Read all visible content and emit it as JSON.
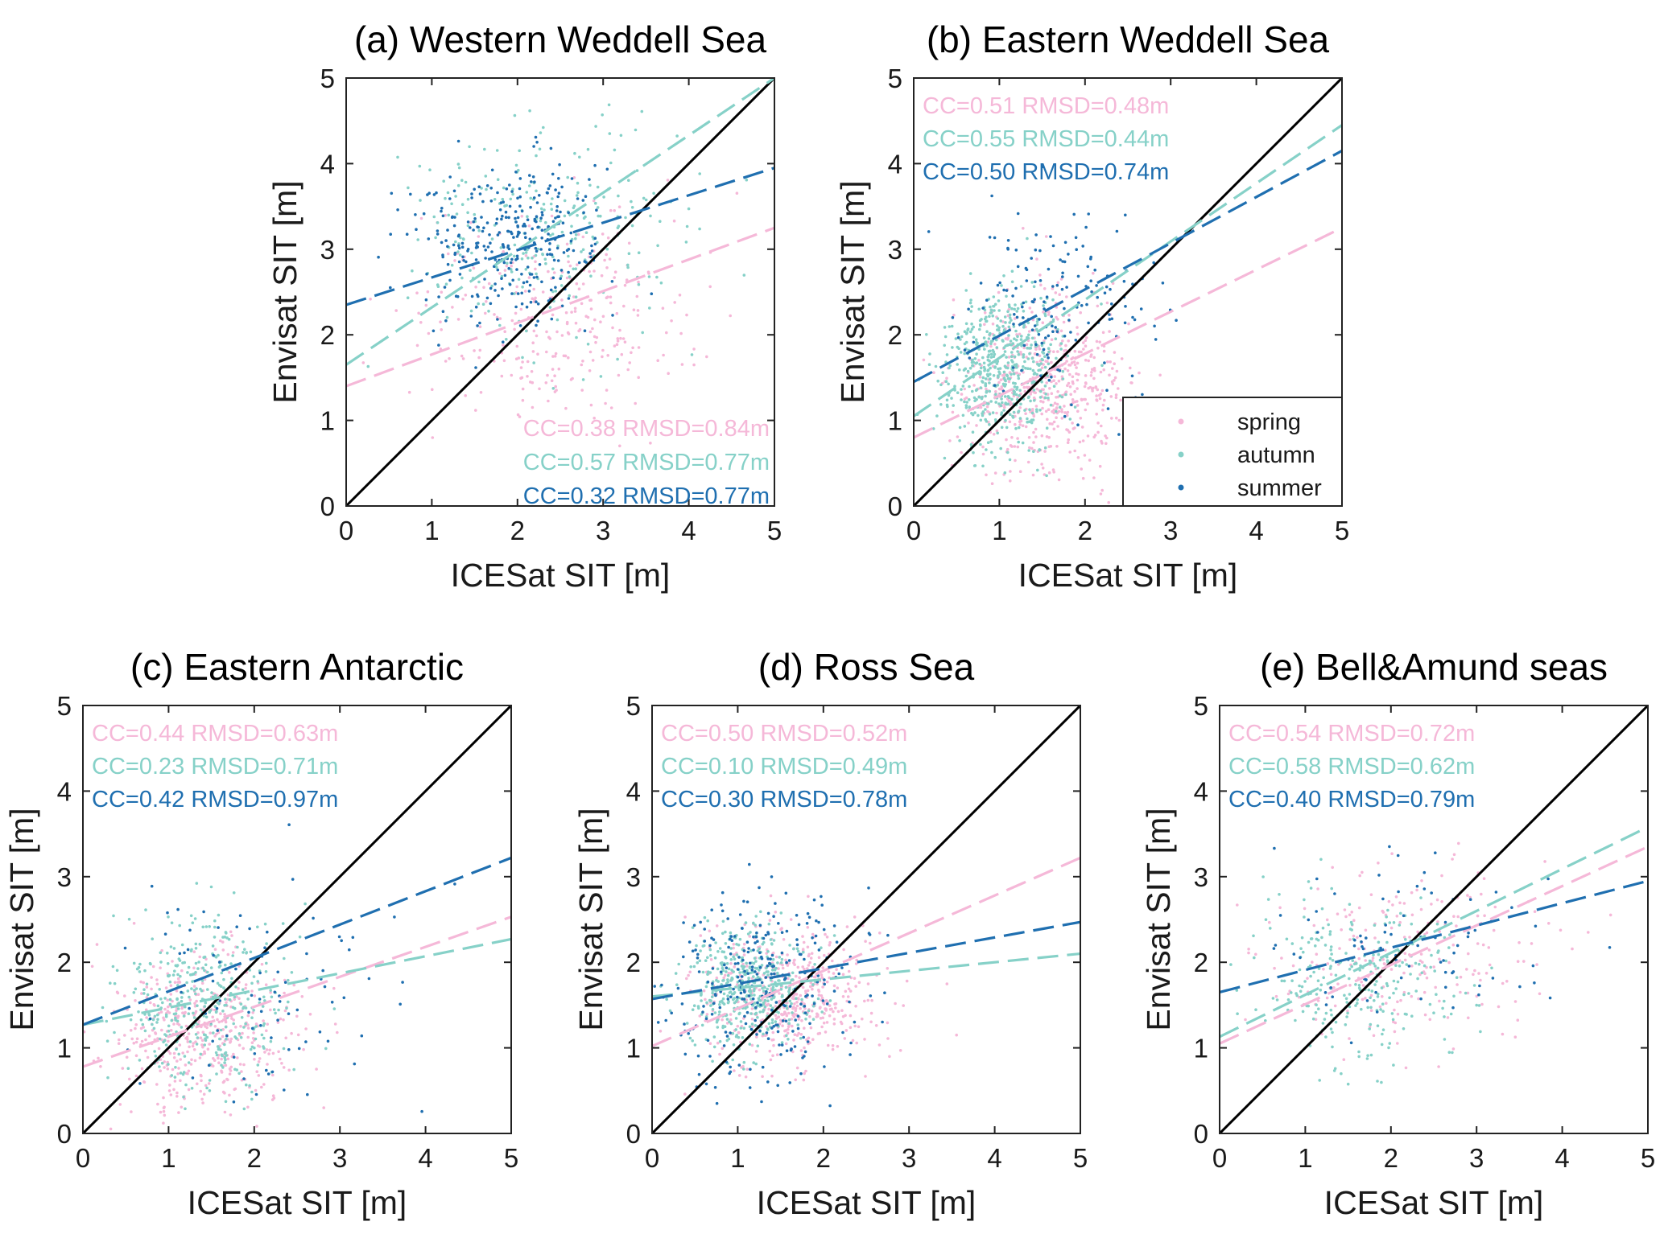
{
  "colors": {
    "spring": "#f5b8d8",
    "autumn": "#86d1c8",
    "summer": "#1f6fb0",
    "onetoone": "#000000"
  },
  "chart_data": [
    {
      "id": "a",
      "type": "scatter",
      "title": "(a) Western Weddell Sea",
      "xlabel": "ICESat SIT [m]",
      "ylabel": "Envisat SIT [m]",
      "xlim": [
        0,
        5
      ],
      "ylim": [
        0,
        5
      ],
      "xticks": [
        "0",
        "1",
        "2",
        "3",
        "4",
        "5"
      ],
      "yticks": [
        "0",
        "1",
        "2",
        "3",
        "4",
        "5"
      ],
      "stats_position": "bottom-right",
      "series": [
        {
          "name": "spring",
          "stat": "CC=0.38 RMSD=0.84m",
          "fit": [
            1.4,
            0.37
          ],
          "cloud": {
            "cx": 2.4,
            "cy": 2.2,
            "sx": 0.8,
            "sy": 0.6,
            "n": 280
          }
        },
        {
          "name": "autumn",
          "stat": "CC=0.57 RMSD=0.77m",
          "fit": [
            1.65,
            0.67
          ],
          "cloud": {
            "cx": 2.3,
            "cy": 3.2,
            "sx": 0.8,
            "sy": 0.7,
            "n": 260
          }
        },
        {
          "name": "summer",
          "stat": "CC=0.32 RMSD=0.77m",
          "fit": [
            2.35,
            0.32
          ],
          "cloud": {
            "cx": 1.9,
            "cy": 3.1,
            "sx": 0.55,
            "sy": 0.5,
            "n": 320
          }
        }
      ]
    },
    {
      "id": "b",
      "type": "scatter",
      "title": "(b) Eastern Weddell Sea",
      "xlabel": "ICESat SIT [m]",
      "ylabel": "Envisat SIT [m]",
      "xlim": [
        0,
        5
      ],
      "ylim": [
        0,
        5
      ],
      "xticks": [
        "0",
        "1",
        "2",
        "3",
        "4",
        "5"
      ],
      "yticks": [
        "0",
        "1",
        "2",
        "3",
        "4",
        "5"
      ],
      "stats_position": "top-left",
      "legend": {
        "position": "bottom-right",
        "entries": [
          "spring",
          "autumn",
          "summer"
        ]
      },
      "series": [
        {
          "name": "spring",
          "stat": "CC=0.51 RMSD=0.48m",
          "fit": [
            0.8,
            0.49
          ],
          "cloud": {
            "cx": 1.5,
            "cy": 1.4,
            "sx": 0.5,
            "sy": 0.5,
            "n": 550
          }
        },
        {
          "name": "autumn",
          "stat": "CC=0.55 RMSD=0.44m",
          "fit": [
            1.05,
            0.68
          ],
          "cloud": {
            "cx": 1.0,
            "cy": 1.6,
            "sx": 0.35,
            "sy": 0.45,
            "n": 550
          }
        },
        {
          "name": "summer",
          "stat": "CC=0.50 RMSD=0.74m",
          "fit": [
            1.45,
            0.54
          ],
          "cloud": {
            "cx": 1.8,
            "cy": 2.4,
            "sx": 0.6,
            "sy": 0.6,
            "n": 160
          }
        }
      ]
    },
    {
      "id": "c",
      "type": "scatter",
      "title": "(c) Eastern Antarctic",
      "xlabel": "ICESat SIT [m]",
      "ylabel": "Envisat SIT [m]",
      "xlim": [
        0,
        5
      ],
      "ylim": [
        0,
        5
      ],
      "xticks": [
        "0",
        "1",
        "2",
        "3",
        "4",
        "5"
      ],
      "yticks": [
        "0",
        "1",
        "2",
        "3",
        "4",
        "5"
      ],
      "stats_position": "top-left",
      "series": [
        {
          "name": "spring",
          "stat": "CC=0.44 RMSD=0.63m",
          "fit": [
            0.78,
            0.35
          ],
          "cloud": {
            "cx": 1.4,
            "cy": 1.2,
            "sx": 0.5,
            "sy": 0.45,
            "n": 450
          }
        },
        {
          "name": "autumn",
          "stat": "CC=0.23 RMSD=0.71m",
          "fit": [
            1.27,
            0.2
          ],
          "cloud": {
            "cx": 1.4,
            "cy": 1.5,
            "sx": 0.5,
            "sy": 0.5,
            "n": 380
          }
        },
        {
          "name": "summer",
          "stat": "CC=0.42 RMSD=0.97m",
          "fit": [
            1.27,
            0.39
          ],
          "cloud": {
            "cx": 2.0,
            "cy": 1.8,
            "sx": 0.9,
            "sy": 0.8,
            "n": 90
          }
        }
      ]
    },
    {
      "id": "d",
      "type": "scatter",
      "title": "(d) Ross Sea",
      "xlabel": "ICESat SIT [m]",
      "ylabel": "Envisat SIT [m]",
      "xlim": [
        0,
        5
      ],
      "ylim": [
        0,
        5
      ],
      "xticks": [
        "0",
        "1",
        "2",
        "3",
        "4",
        "5"
      ],
      "yticks": [
        "0",
        "1",
        "2",
        "3",
        "4",
        "5"
      ],
      "stats_position": "top-left",
      "series": [
        {
          "name": "spring",
          "stat": "CC=0.50 RMSD=0.52m",
          "fit": [
            1.02,
            0.44
          ],
          "cloud": {
            "cx": 1.6,
            "cy": 1.6,
            "sx": 0.55,
            "sy": 0.4,
            "n": 500
          }
        },
        {
          "name": "autumn",
          "stat": "CC=0.10 RMSD=0.49m",
          "fit": [
            1.6,
            0.1
          ],
          "cloud": {
            "cx": 1.1,
            "cy": 1.7,
            "sx": 0.35,
            "sy": 0.35,
            "n": 450
          }
        },
        {
          "name": "summer",
          "stat": "CC=0.30 RMSD=0.78m",
          "fit": [
            1.57,
            0.18
          ],
          "cloud": {
            "cx": 1.3,
            "cy": 1.7,
            "sx": 0.6,
            "sy": 0.55,
            "n": 280
          }
        }
      ]
    },
    {
      "id": "e",
      "type": "scatter",
      "title": "(e) Bell&Amund seas",
      "xlabel": "ICESat SIT [m]",
      "ylabel": "Envisat SIT [m]",
      "xlim": [
        0,
        5
      ],
      "ylim": [
        0,
        5
      ],
      "xticks": [
        "0",
        "1",
        "2",
        "3",
        "4",
        "5"
      ],
      "yticks": [
        "0",
        "1",
        "2",
        "3",
        "4",
        "5"
      ],
      "stats_position": "top-left",
      "series": [
        {
          "name": "spring",
          "stat": "CC=0.54 RMSD=0.72m",
          "fit": [
            1.05,
            0.46
          ],
          "cloud": {
            "cx": 2.1,
            "cy": 2.0,
            "sx": 0.8,
            "sy": 0.55,
            "n": 230
          }
        },
        {
          "name": "autumn",
          "stat": "CC=0.58 RMSD=0.62m",
          "fit": [
            1.13,
            0.49
          ],
          "cloud": {
            "cx": 1.6,
            "cy": 1.8,
            "sx": 0.6,
            "sy": 0.5,
            "n": 260
          }
        },
        {
          "name": "summer",
          "stat": "CC=0.40 RMSD=0.79m",
          "fit": [
            1.65,
            0.26
          ],
          "cloud": {
            "cx": 2.2,
            "cy": 2.2,
            "sx": 0.8,
            "sy": 0.5,
            "n": 80
          }
        }
      ]
    }
  ]
}
